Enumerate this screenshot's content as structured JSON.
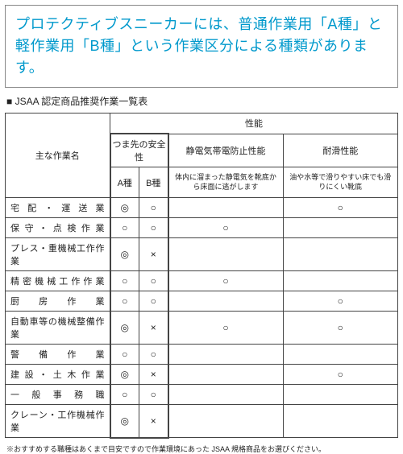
{
  "header": {
    "text": "プロテクティブスニーカーには、普通作業用「A種」と軽作業用「B種」という作業区分による種類があります。"
  },
  "subhead": "■ JSAA 認定商品推奨作業一覧表",
  "table": {
    "colhead": {
      "work": "主な作業名",
      "perf": "性能",
      "toe": "つま先の安全性",
      "a": "A種",
      "b": "B種",
      "static_title": "静電気帯電防止性能",
      "static_desc": "体内に溜まった静電気を靴底から床面に逃がします",
      "slip_title": "耐滑性能",
      "slip_desc": "油や水等で滑りやすい床でも滑りにくい靴底"
    },
    "rows": [
      {
        "work": "宅配・運送業",
        "a": "◎",
        "b": "○",
        "static": "",
        "slip": "○"
      },
      {
        "work": "保守・点検作業",
        "a": "○",
        "b": "○",
        "static": "○",
        "slip": ""
      },
      {
        "work": "プレス・重機械工作作業",
        "a": "◎",
        "b": "×",
        "static": "",
        "slip": ""
      },
      {
        "work": "精密機械工作作業",
        "a": "○",
        "b": "○",
        "static": "○",
        "slip": ""
      },
      {
        "work": "厨房作業",
        "a": "○",
        "b": "○",
        "static": "",
        "slip": "○"
      },
      {
        "work": "自動車等の機械整備作業",
        "a": "◎",
        "b": "×",
        "static": "○",
        "slip": "○"
      },
      {
        "work": "警備作業",
        "a": "○",
        "b": "○",
        "static": "",
        "slip": ""
      },
      {
        "work": "建設・土木作業",
        "a": "◎",
        "b": "×",
        "static": "",
        "slip": "○"
      },
      {
        "work": "一般事務職",
        "a": "○",
        "b": "○",
        "static": "",
        "slip": ""
      },
      {
        "work": "クレーン・工作機械作業",
        "a": "◎",
        "b": "×",
        "static": "",
        "slip": ""
      }
    ]
  },
  "footnote": "※おすすめする職種はあくまで目安ですので作業環境にあった JSAA 規格商品をお選びください。"
}
